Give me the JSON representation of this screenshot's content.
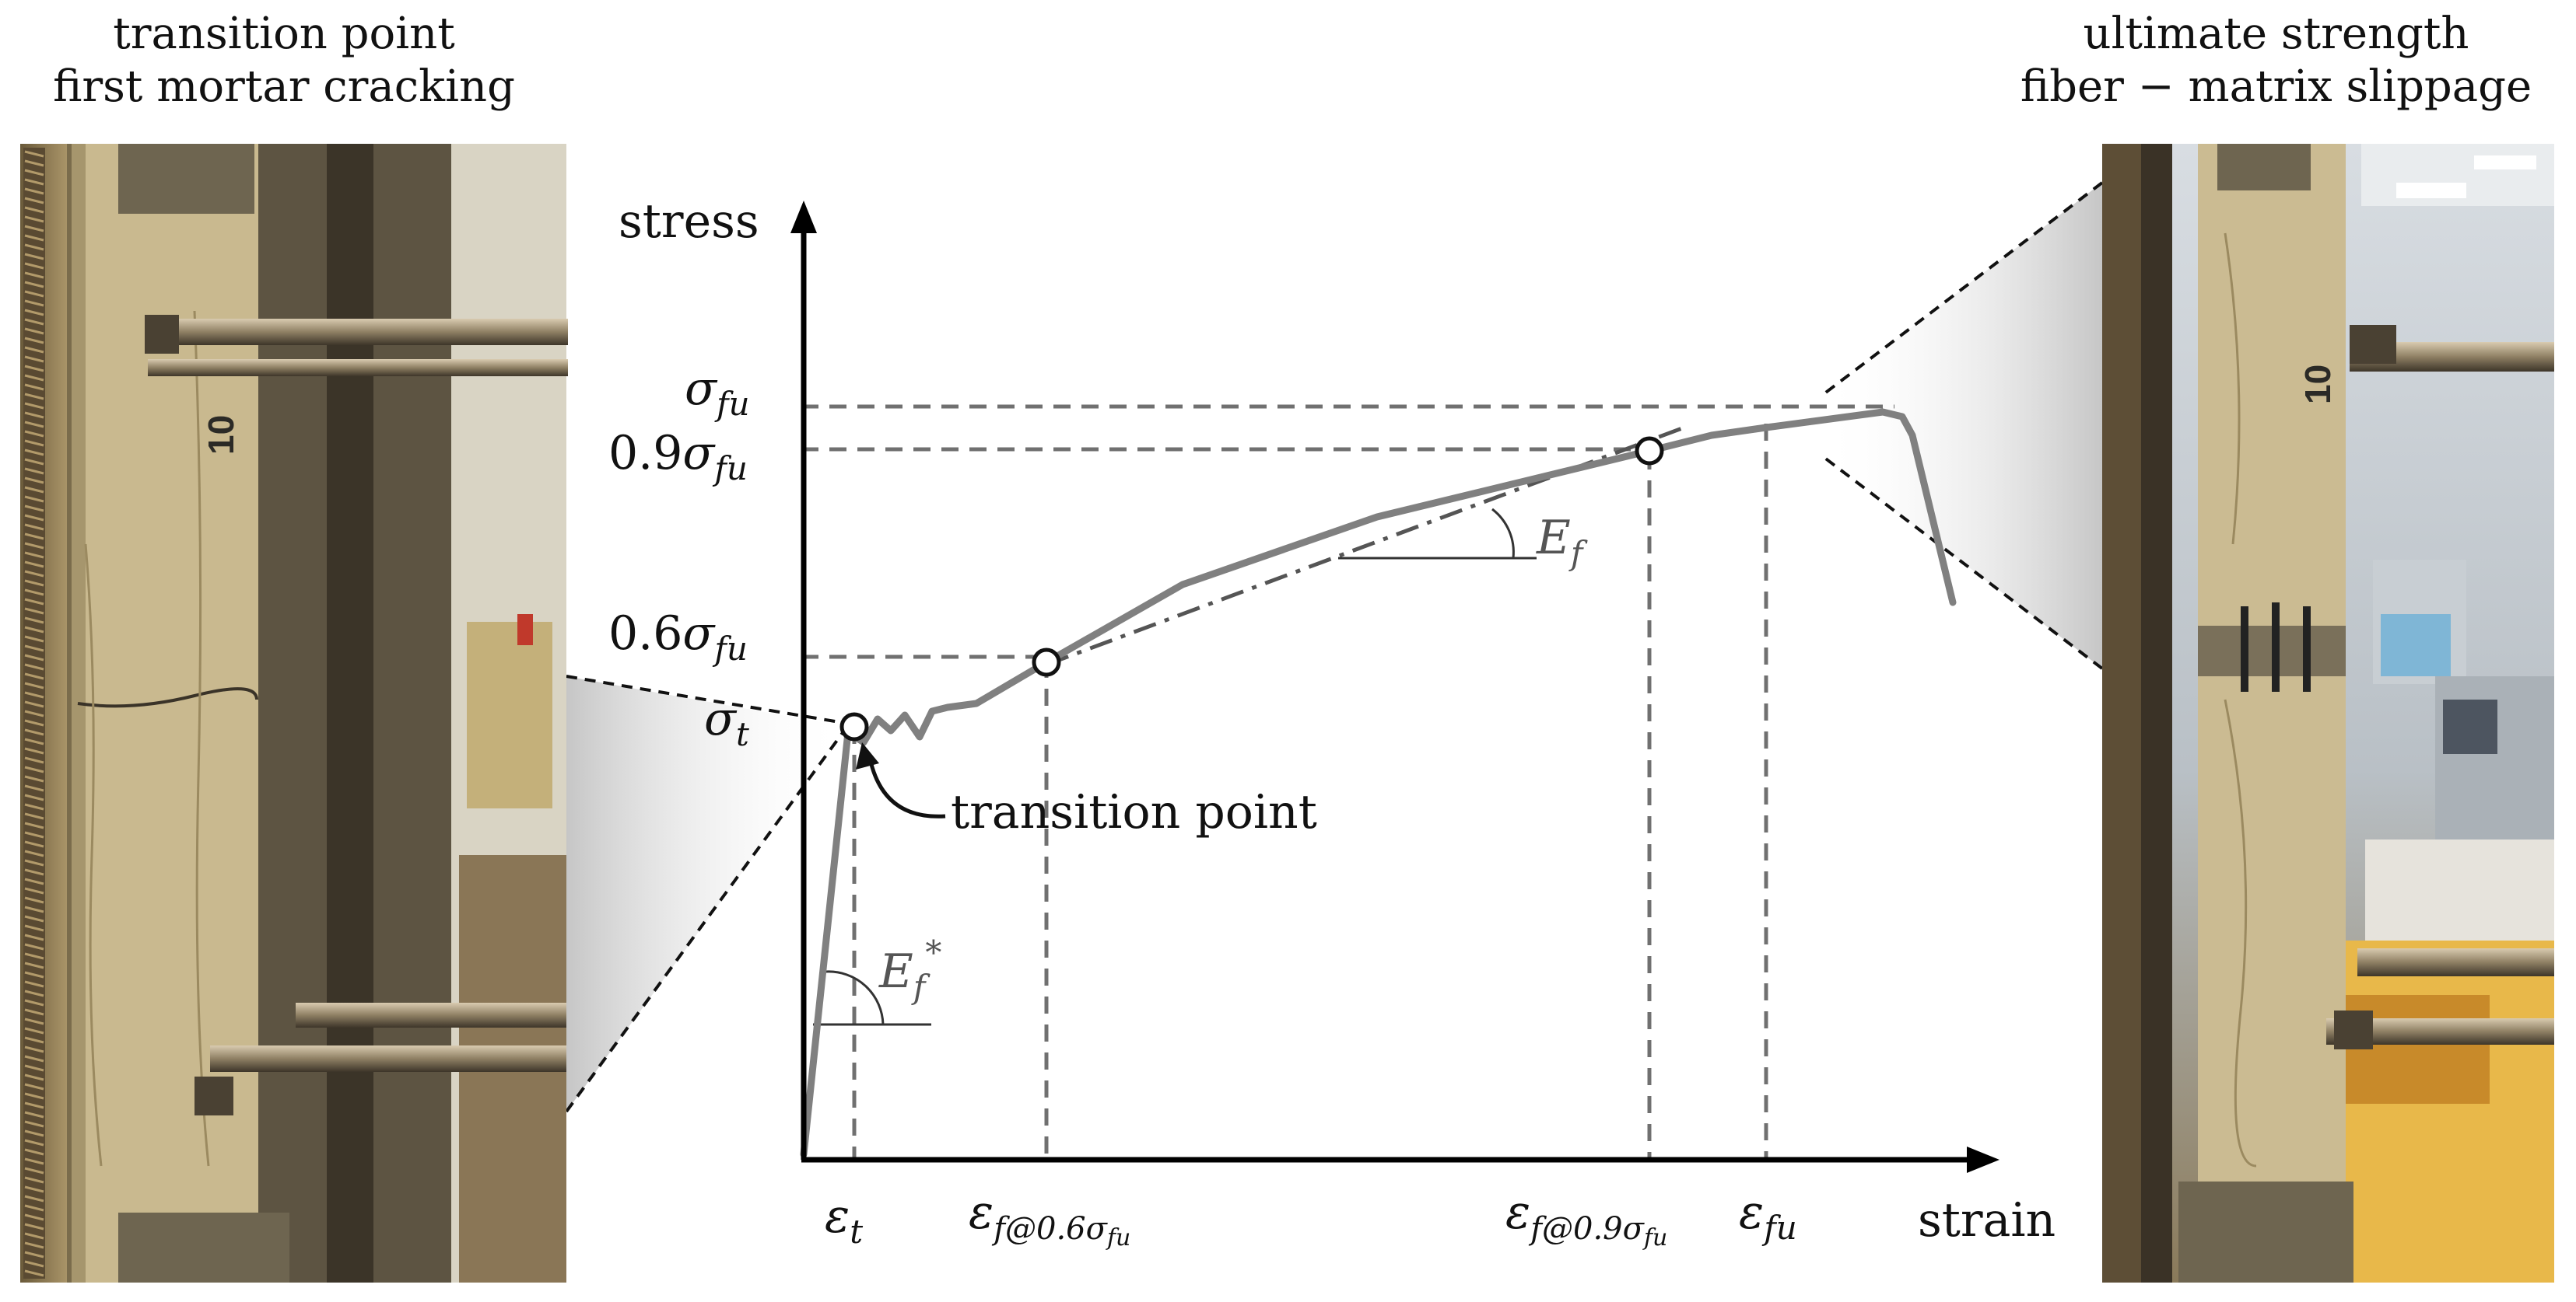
{
  "captions": {
    "left": [
      "transition point",
      "first mortar cracking"
    ],
    "right": [
      "ultimate strength",
      "fiber − matrix slippage"
    ]
  },
  "axes": {
    "y_label": "stress",
    "x_label": "strain"
  },
  "y_levels": {
    "sigma_fu": {
      "base": "σ",
      "sub": "fu"
    },
    "s09": {
      "coef": "0.9",
      "base": "σ",
      "sub": "fu"
    },
    "s06": {
      "coef": "0.6",
      "base": "σ",
      "sub": "fu"
    },
    "sigma_t": {
      "base": "σ",
      "sub": "t"
    }
  },
  "x_levels": {
    "eps_t": {
      "base": "ε",
      "sub": "t"
    },
    "eps_06": {
      "base": "ε",
      "sub": "f@0.6",
      "sub2": "σ",
      "sub3": "fu"
    },
    "eps_09": {
      "base": "ε",
      "sub": "f@0.9",
      "sub2": "σ",
      "sub3": "fu"
    },
    "eps_fu": {
      "base": "ε",
      "sub": "fu"
    }
  },
  "annotations": {
    "transition_point": "transition point",
    "Ef_base": "E",
    "Ef_sub": "f",
    "Efstar_base": "E",
    "Efstar_sub": "f",
    "Efstar_sup": "*"
  },
  "colors": {
    "curve": "#808080",
    "guides": "#707070",
    "axis": "#000000",
    "concrete": "#b7ab90",
    "steel": "#9a8f7a"
  }
}
